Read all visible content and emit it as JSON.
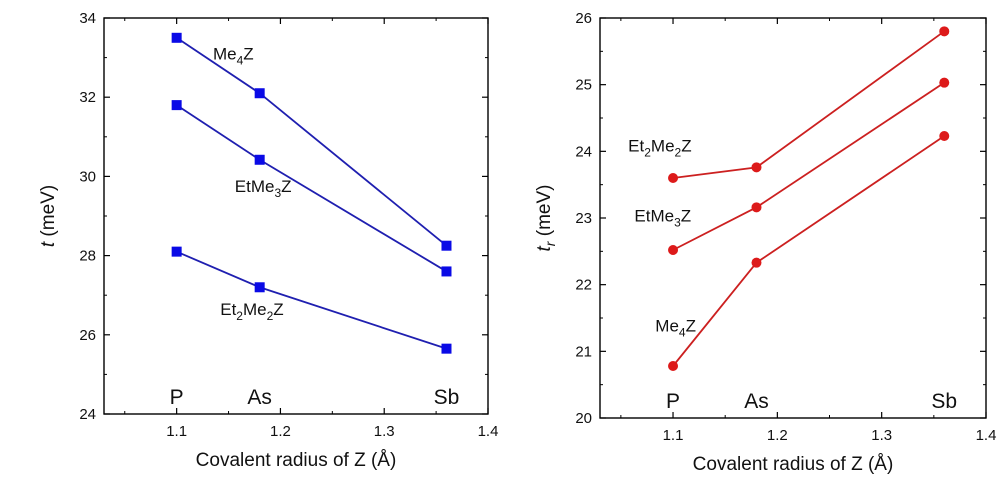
{
  "chart_data": [
    {
      "type": "line",
      "x": [
        1.1,
        1.18,
        1.36
      ],
      "element_labels": [
        "P",
        "As",
        "Sb"
      ],
      "xlabel": "Covalent radius of Z (Å)",
      "ylabel_symbol": "t",
      "ylabel_sub": "",
      "ylabel_unit": " (meV)",
      "xlim": [
        1.03,
        1.4
      ],
      "ylim": [
        24,
        34
      ],
      "xticks": [
        1.1,
        1.2,
        1.3,
        1.4
      ],
      "yticks": [
        24,
        26,
        28,
        30,
        32,
        34
      ],
      "color": "#1f1fb0",
      "marker_color": "#0a0ae6",
      "marker": "square",
      "series": [
        {
          "name": "Me4Z",
          "base": "Me",
          "sub": "4",
          "tail": "Z",
          "values": [
            33.5,
            32.1,
            28.25
          ],
          "label_x": 1.135,
          "label_y": 32.95
        },
        {
          "name": "EtMe3Z",
          "base": "EtMe",
          "sub": "3",
          "tail": "Z",
          "values": [
            31.8,
            30.42,
            27.6
          ],
          "label_x": 1.156,
          "label_y": 29.6
        },
        {
          "name": "Et2Me2Z",
          "base": "Et",
          "sub": "2",
          "tail": "Me",
          "sub2": "2",
          "tail2": "Z",
          "values": [
            28.1,
            27.2,
            25.65
          ],
          "label_x": 1.142,
          "label_y": 26.5
        }
      ]
    },
    {
      "type": "line",
      "x": [
        1.1,
        1.18,
        1.36
      ],
      "element_labels": [
        "P",
        "As",
        "Sb"
      ],
      "xlabel": "Covalent radius of Z (Å)",
      "ylabel_symbol": "t",
      "ylabel_sub": "r",
      "ylabel_unit": " (meV)",
      "xlim": [
        1.03,
        1.4
      ],
      "ylim": [
        20,
        26
      ],
      "xticks": [
        1.1,
        1.2,
        1.3,
        1.4
      ],
      "yticks": [
        20,
        21,
        22,
        23,
        24,
        25,
        26
      ],
      "color": "#cc2020",
      "marker_color": "#dd1a1a",
      "marker": "circle",
      "series": [
        {
          "name": "Et2Me2Z",
          "base": "Et",
          "sub": "2",
          "tail": "Me",
          "sub2": "2",
          "tail2": "Z",
          "values": [
            23.6,
            23.76,
            25.8
          ],
          "label_x": 1.057,
          "label_y": 24.0
        },
        {
          "name": "EtMe3Z",
          "base": "EtMe",
          "sub": "3",
          "tail": "Z",
          "values": [
            22.52,
            23.16,
            25.03
          ],
          "label_x": 1.063,
          "label_y": 22.95
        },
        {
          "name": "Me4Z",
          "base": "Me",
          "sub": "4",
          "tail": "Z",
          "values": [
            20.78,
            22.33,
            24.23
          ],
          "label_x": 1.083,
          "label_y": 21.3
        }
      ]
    }
  ]
}
